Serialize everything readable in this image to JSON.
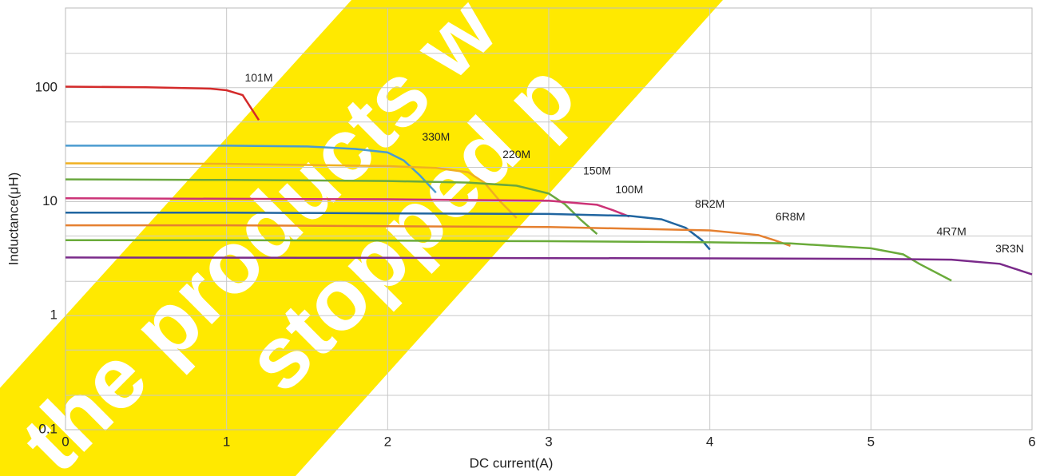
{
  "chart_data": {
    "type": "line",
    "ylabel": "Inductance(μH)",
    "xlabel": "DC current(A)",
    "log_y": true,
    "grid": true,
    "xlim": [
      0,
      6
    ],
    "xticks": [
      0,
      1,
      2,
      3,
      4,
      5,
      6
    ],
    "ylim": [
      0.1,
      500
    ],
    "yticks": [
      0.1,
      1,
      10,
      100
    ],
    "yminorticks": [
      0.2,
      0.5,
      2,
      5,
      20,
      50,
      200
    ],
    "watermark": [
      "the products w",
      "stopped p"
    ],
    "watermark_color": "#ffe900",
    "series": [
      {
        "name": "101M",
        "color": "#d42a2a",
        "x": [
          0,
          0.5,
          0.9,
          1.0,
          1.1,
          1.2
        ],
        "values": [
          102,
          101,
          98,
          95,
          86,
          52
        ]
      },
      {
        "name": "330M",
        "color": "#4a9bd0",
        "x": [
          0,
          1,
          1.5,
          1.8,
          2.0,
          2.1,
          2.2,
          2.3
        ],
        "values": [
          31,
          31,
          30.5,
          29,
          27,
          23,
          17,
          12
        ]
      },
      {
        "name": "220M",
        "color": "#f0b020",
        "x": [
          0,
          1,
          2.0,
          2.3,
          2.5,
          2.6,
          2.7,
          2.8
        ],
        "values": [
          21.7,
          21.5,
          20.5,
          19.8,
          18.1,
          14.7,
          10,
          7.2
        ]
      },
      {
        "name": "150M",
        "color": "#6aa83f",
        "x": [
          0,
          1,
          2.0,
          2.5,
          2.8,
          3.0,
          3.1,
          3.2,
          3.3
        ],
        "values": [
          15.7,
          15.5,
          15.2,
          14.7,
          13.8,
          11.8,
          9.5,
          6.9,
          5.2
        ]
      },
      {
        "name": "100M",
        "color": "#cc3377",
        "x": [
          0,
          1,
          2,
          3.0,
          3.3,
          3.4,
          3.5
        ],
        "values": [
          10.7,
          10.6,
          10.5,
          10.2,
          9.4,
          8.4,
          7.4
        ]
      },
      {
        "name": "8R2M",
        "color": "#2065a0",
        "x": [
          0,
          1,
          2,
          3,
          3.5,
          3.7,
          3.85,
          3.95,
          4.0
        ],
        "values": [
          8.0,
          8.0,
          7.9,
          7.8,
          7.5,
          7.0,
          5.9,
          4.6,
          3.8
        ]
      },
      {
        "name": "6R8M",
        "color": "#e58030",
        "x": [
          0,
          1,
          2,
          3,
          4.0,
          4.3,
          4.4,
          4.5
        ],
        "values": [
          6.2,
          6.2,
          6.1,
          6.0,
          5.6,
          5.1,
          4.6,
          4.1
        ]
      },
      {
        "name": "4R7M",
        "color": "#6aab3a",
        "x": [
          0,
          1,
          2,
          3,
          4.0,
          4.5,
          5.0,
          5.2,
          5.3,
          5.5
        ],
        "values": [
          4.6,
          4.6,
          4.55,
          4.5,
          4.4,
          4.3,
          3.9,
          3.45,
          2.85,
          2.03
        ]
      },
      {
        "name": "3R3N",
        "color": "#7a2a8a",
        "x": [
          0,
          1,
          2,
          3,
          4,
          5,
          5.5,
          5.8,
          6.0
        ],
        "values": [
          3.24,
          3.23,
          3.22,
          3.2,
          3.18,
          3.15,
          3.1,
          2.85,
          2.3
        ]
      }
    ]
  }
}
